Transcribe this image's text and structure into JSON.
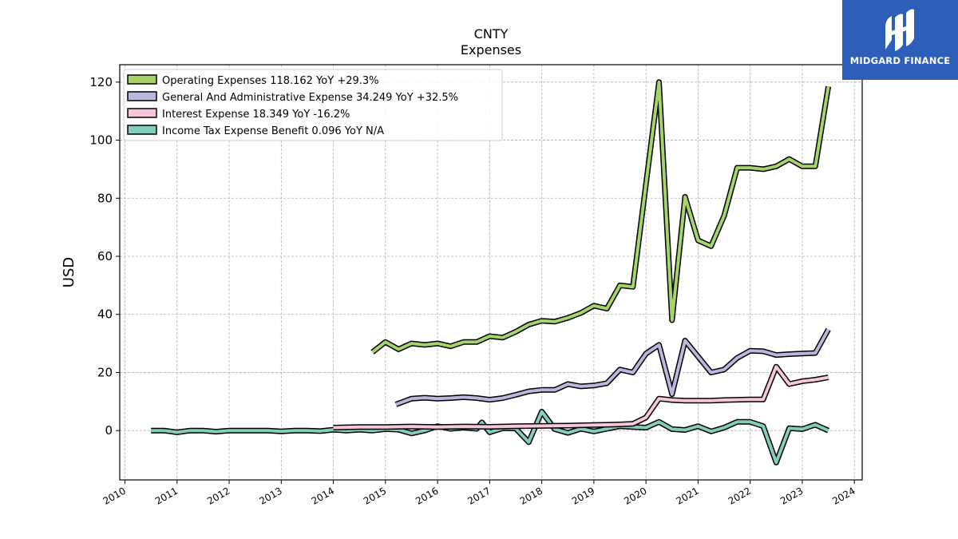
{
  "logo": {
    "text": "MIDGARD FINANCE",
    "bg": "#2d5fb8"
  },
  "chart_data": {
    "type": "line",
    "title": "CNTY",
    "subtitle": "Expenses",
    "ylabel": "USD",
    "xlabel": "",
    "xlim": [
      2009.9,
      2024.15
    ],
    "ylim": [
      -17,
      126
    ],
    "yticks": [
      0,
      20,
      40,
      60,
      80,
      100,
      120
    ],
    "xticks": [
      2010,
      2011,
      2012,
      2013,
      2014,
      2015,
      2016,
      2017,
      2018,
      2019,
      2020,
      2021,
      2022,
      2023,
      2024
    ],
    "grid": true,
    "legend_position": "top-left",
    "series": [
      {
        "name": "Operating Expenses  118.162 YoY +29.3%",
        "color": "#a6d36a",
        "points": [
          [
            2014.75,
            27
          ],
          [
            2015.0,
            30.5
          ],
          [
            2015.25,
            28
          ],
          [
            2015.5,
            30
          ],
          [
            2015.75,
            29.5
          ],
          [
            2016.0,
            30
          ],
          [
            2016.25,
            29
          ],
          [
            2016.5,
            30.5
          ],
          [
            2016.75,
            30.5
          ],
          [
            2017.0,
            32.5
          ],
          [
            2017.25,
            32
          ],
          [
            2017.5,
            34
          ],
          [
            2017.75,
            36.5
          ],
          [
            2018.0,
            37.8
          ],
          [
            2018.25,
            37.5
          ],
          [
            2018.5,
            38.8
          ],
          [
            2018.75,
            40.5
          ],
          [
            2019.0,
            43
          ],
          [
            2019.25,
            42
          ],
          [
            2019.5,
            50
          ],
          [
            2019.75,
            49.5
          ],
          [
            2020.0,
            85
          ],
          [
            2020.25,
            120
          ],
          [
            2020.5,
            38
          ],
          [
            2020.75,
            80.5
          ],
          [
            2021.0,
            65.5
          ],
          [
            2021.25,
            63.5
          ],
          [
            2021.5,
            74
          ],
          [
            2021.75,
            90.5
          ],
          [
            2022.0,
            90.5
          ],
          [
            2022.25,
            90
          ],
          [
            2022.5,
            91
          ],
          [
            2022.75,
            93.5
          ],
          [
            2023.0,
            91
          ],
          [
            2023.25,
            91
          ],
          [
            2023.5,
            118.5
          ]
        ]
      },
      {
        "name": "General And Administrative Expense  34.249 YoY +32.5%",
        "color": "#b9b7dd",
        "points": [
          [
            2015.2,
            9
          ],
          [
            2015.5,
            11
          ],
          [
            2015.75,
            11.3
          ],
          [
            2016.0,
            11
          ],
          [
            2016.25,
            11.2
          ],
          [
            2016.5,
            11.5
          ],
          [
            2016.75,
            11.2
          ],
          [
            2017.0,
            10.6
          ],
          [
            2017.25,
            11.2
          ],
          [
            2017.5,
            12.3
          ],
          [
            2017.75,
            13.5
          ],
          [
            2018.0,
            14
          ],
          [
            2018.25,
            14
          ],
          [
            2018.5,
            16
          ],
          [
            2018.75,
            15.2
          ],
          [
            2019.0,
            15.5
          ],
          [
            2019.25,
            16.3
          ],
          [
            2019.5,
            21
          ],
          [
            2019.75,
            20
          ],
          [
            2020.0,
            26.5
          ],
          [
            2020.25,
            29.5
          ],
          [
            2020.5,
            12.5
          ],
          [
            2020.75,
            31
          ],
          [
            2021.0,
            25.5
          ],
          [
            2021.25,
            20
          ],
          [
            2021.5,
            21
          ],
          [
            2021.75,
            25
          ],
          [
            2022.0,
            27.5
          ],
          [
            2022.25,
            27.3
          ],
          [
            2022.5,
            26
          ],
          [
            2022.75,
            26.3
          ],
          [
            2023.0,
            26.5
          ],
          [
            2023.25,
            26.7
          ],
          [
            2023.5,
            34.8
          ]
        ]
      },
      {
        "name": "Interest Expense  18.349 YoY -16.2%",
        "color": "#f6c6dc",
        "points": [
          [
            2014.0,
            1
          ],
          [
            2014.5,
            1.2
          ],
          [
            2015.0,
            1.2
          ],
          [
            2015.5,
            1.4
          ],
          [
            2016.0,
            1.2
          ],
          [
            2016.5,
            1.4
          ],
          [
            2017.0,
            1.3
          ],
          [
            2017.5,
            1.5
          ],
          [
            2018.0,
            1.6
          ],
          [
            2018.5,
            1.7
          ],
          [
            2019.0,
            1.9
          ],
          [
            2019.5,
            2.1
          ],
          [
            2019.75,
            2.3
          ],
          [
            2020.0,
            4.5
          ],
          [
            2020.25,
            11
          ],
          [
            2020.5,
            10.5
          ],
          [
            2020.75,
            10.3
          ],
          [
            2021.0,
            10.3
          ],
          [
            2021.25,
            10.3
          ],
          [
            2021.5,
            10.5
          ],
          [
            2021.75,
            10.6
          ],
          [
            2022.0,
            10.7
          ],
          [
            2022.25,
            10.7
          ],
          [
            2022.5,
            22
          ],
          [
            2022.75,
            16
          ],
          [
            2023.0,
            17
          ],
          [
            2023.25,
            17.5
          ],
          [
            2023.5,
            18.3
          ]
        ]
      },
      {
        "name": "Income Tax Expense Benefit  0.096 YoY N/A",
        "color": "#82cdbb",
        "points": [
          [
            2010.5,
            0
          ],
          [
            2010.75,
            0
          ],
          [
            2011.0,
            -0.6
          ],
          [
            2011.25,
            0
          ],
          [
            2011.5,
            0
          ],
          [
            2011.75,
            -0.4
          ],
          [
            2012.0,
            0
          ],
          [
            2012.25,
            0
          ],
          [
            2012.5,
            0
          ],
          [
            2012.75,
            0
          ],
          [
            2013.0,
            -0.3
          ],
          [
            2013.25,
            0
          ],
          [
            2013.5,
            0
          ],
          [
            2013.75,
            -0.2
          ],
          [
            2014.0,
            0.3
          ],
          [
            2014.25,
            0
          ],
          [
            2014.5,
            0.3
          ],
          [
            2014.75,
            0
          ],
          [
            2015.0,
            0.5
          ],
          [
            2015.25,
            0.3
          ],
          [
            2015.5,
            -1
          ],
          [
            2015.75,
            0
          ],
          [
            2016.0,
            1.5
          ],
          [
            2016.25,
            0.6
          ],
          [
            2016.5,
            1
          ],
          [
            2016.75,
            0.6
          ],
          [
            2016.85,
            2.8
          ],
          [
            2017.0,
            -0.6
          ],
          [
            2017.25,
            0.8
          ],
          [
            2017.5,
            0.7
          ],
          [
            2017.75,
            -4
          ],
          [
            2018.0,
            6.5
          ],
          [
            2018.25,
            0.5
          ],
          [
            2018.5,
            -0.8
          ],
          [
            2018.75,
            0.6
          ],
          [
            2019.0,
            -0.3
          ],
          [
            2019.25,
            0.6
          ],
          [
            2019.5,
            1.5
          ],
          [
            2019.75,
            1.2
          ],
          [
            2020.0,
            1
          ],
          [
            2020.25,
            3
          ],
          [
            2020.5,
            0.5
          ],
          [
            2020.75,
            0.2
          ],
          [
            2021.0,
            1.5
          ],
          [
            2021.25,
            -0.3
          ],
          [
            2021.5,
            1
          ],
          [
            2021.75,
            3
          ],
          [
            2022.0,
            3
          ],
          [
            2022.25,
            1.5
          ],
          [
            2022.5,
            -11
          ],
          [
            2022.75,
            0.8
          ],
          [
            2023.0,
            0.5
          ],
          [
            2023.25,
            2
          ],
          [
            2023.5,
            0
          ]
        ]
      }
    ]
  }
}
